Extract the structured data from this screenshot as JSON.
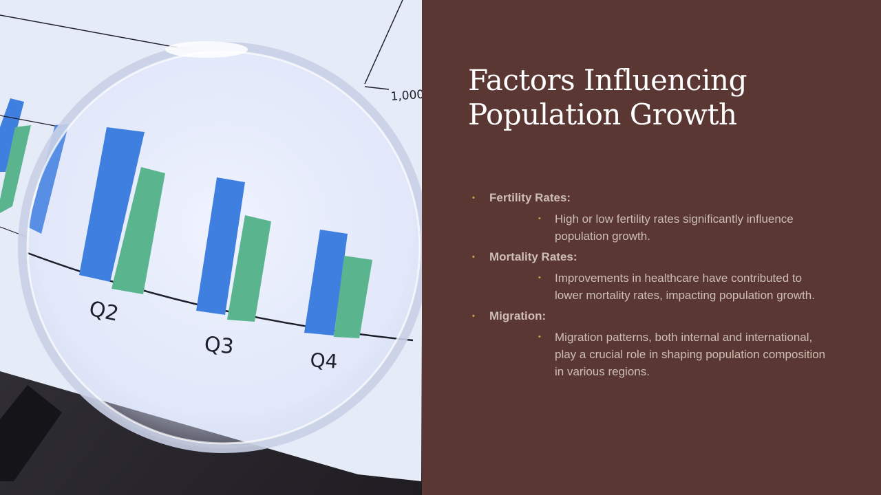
{
  "slide": {
    "title_line1": "Factors Influencing",
    "title_line2": "Population Growth",
    "bullets": [
      {
        "heading": "Fertility Rates:",
        "detail": "High or low fertility rates significantly influence population growth."
      },
      {
        "heading": "Mortality Rates:",
        "detail": "Improvements in healthcare have contributed to lower mortality rates, impacting population growth."
      },
      {
        "heading": "Migration:",
        "detail": "Migration patterns, both internal and international,  play a crucial role in shaping population composition in various regions."
      }
    ],
    "bullet_glyph": "•"
  },
  "photo": {
    "axis_tick_label": "1,000",
    "quarter_labels": [
      "Q2",
      "Q3",
      "Q4"
    ],
    "colors": {
      "blue_bar": "#3f7fe0",
      "green_bar": "#5ab58f",
      "paper": "#e7ecf8",
      "panel": "#5b3733"
    }
  }
}
